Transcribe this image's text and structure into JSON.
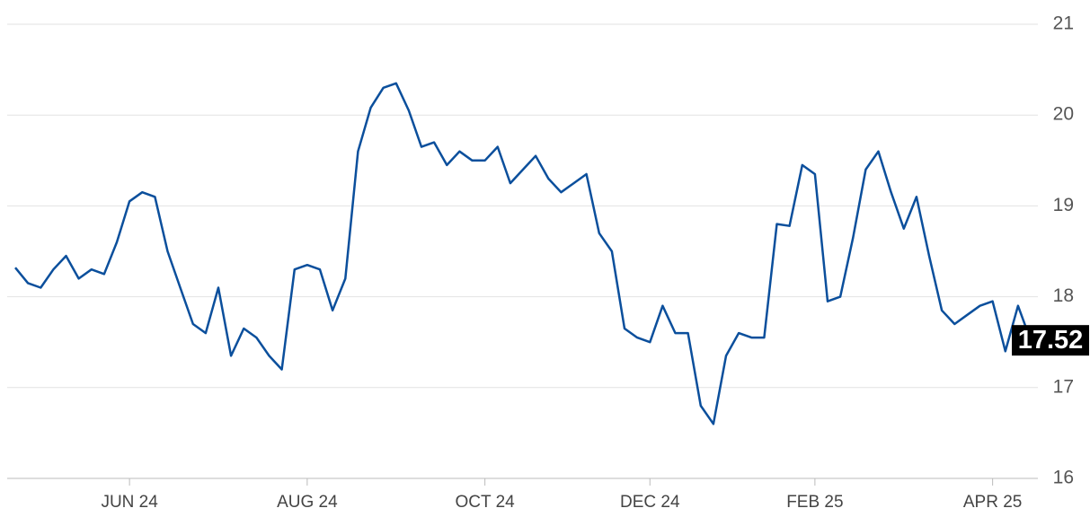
{
  "chart_data": {
    "type": "line",
    "categories": [
      null,
      null,
      null,
      null,
      null,
      null,
      null,
      null,
      null,
      "JUN 24",
      null,
      null,
      null,
      null,
      null,
      null,
      null,
      null,
      null,
      null,
      null,
      null,
      null,
      "AUG 24",
      null,
      null,
      null,
      null,
      null,
      null,
      null,
      null,
      null,
      null,
      null,
      null,
      null,
      "OCT 24",
      null,
      null,
      null,
      null,
      null,
      null,
      null,
      null,
      null,
      null,
      null,
      null,
      "DEC 24",
      null,
      null,
      null,
      null,
      null,
      null,
      null,
      null,
      null,
      null,
      null,
      null,
      "FEB 25",
      null,
      null,
      null,
      null,
      null,
      null,
      null,
      null,
      null,
      null,
      null,
      null,
      null,
      "APR 25",
      null,
      null,
      null
    ],
    "series": [
      {
        "color": "#0b4f9c",
        "values": [
          18.32,
          18.15,
          18.1,
          18.3,
          18.45,
          18.2,
          18.3,
          18.25,
          18.6,
          19.05,
          19.15,
          19.1,
          18.5,
          18.1,
          17.7,
          17.6,
          18.1,
          17.35,
          17.65,
          17.55,
          17.35,
          17.2,
          18.3,
          18.35,
          18.3,
          17.85,
          18.2,
          19.6,
          20.08,
          20.3,
          20.35,
          20.05,
          19.65,
          19.7,
          19.45,
          19.6,
          19.5,
          19.5,
          19.65,
          19.25,
          19.4,
          19.55,
          19.3,
          19.15,
          19.25,
          19.35,
          18.7,
          18.5,
          17.65,
          17.55,
          17.5,
          17.9,
          17.6,
          17.6,
          16.8,
          16.6,
          17.35,
          17.6,
          17.55,
          17.55,
          18.8,
          18.78,
          19.45,
          19.35,
          17.95,
          18.0,
          18.65,
          19.4,
          19.6,
          19.15,
          18.75,
          19.1,
          18.45,
          17.85,
          17.7,
          17.8,
          17.9,
          17.95,
          17.4,
          17.9,
          17.52
        ]
      }
    ],
    "ylim": [
      16,
      21
    ],
    "yticks": [
      16,
      17,
      18,
      19,
      20,
      21
    ],
    "grid": true
  }
}
